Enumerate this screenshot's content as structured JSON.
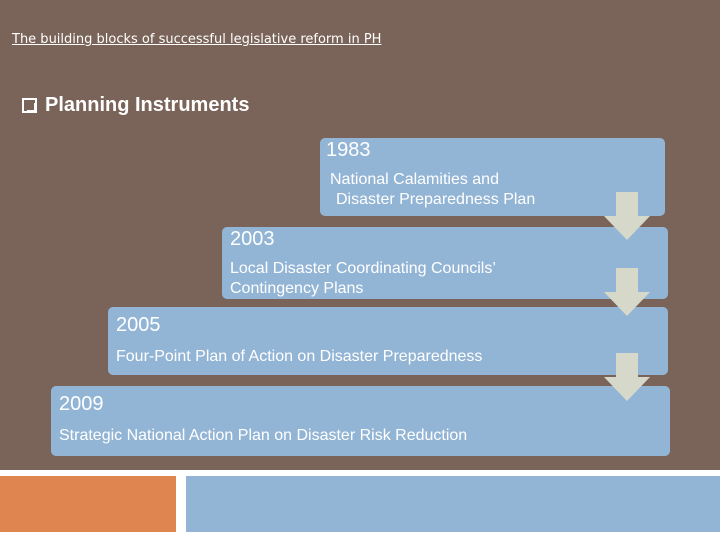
{
  "slide": {
    "title": "The building blocks of successful legislative reform in PH",
    "heading": "Planning Instruments",
    "bullet_icon": "checkbox-bullet-icon"
  },
  "timeline": [
    {
      "year": "1983",
      "description": "National Calamities and Disaster Preparedness Plan"
    },
    {
      "year": "2003",
      "description": "Local Disaster Coordinating Councils’ Contingency Plans"
    },
    {
      "year": "2005",
      "description": "Four-Point Plan of Action on Disaster Preparedness"
    },
    {
      "year": "2009",
      "description": "Strategic National Action Plan on Disaster Risk Reduction"
    }
  ],
  "colors": {
    "background": "#7a6459",
    "box": "#93b5d5",
    "arrow": "#d6d8ca",
    "accent_orange": "#df8650"
  }
}
